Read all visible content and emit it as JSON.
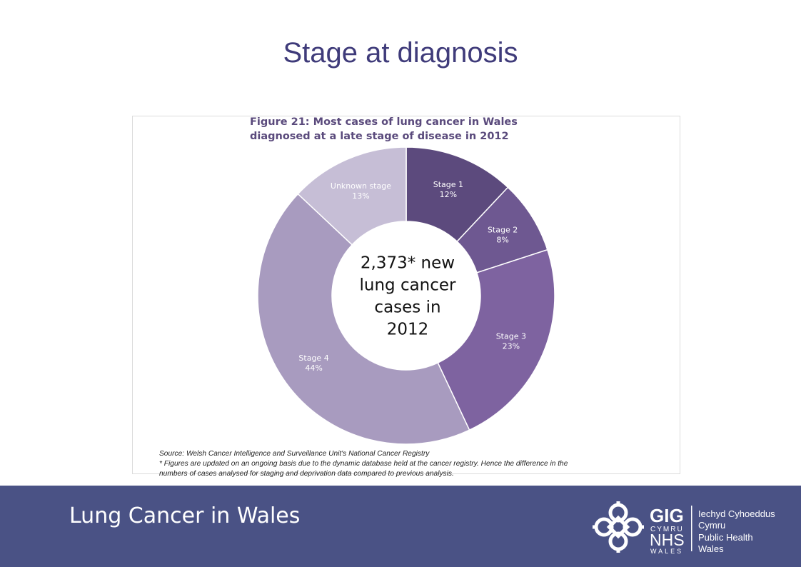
{
  "page": {
    "title": "Stage at diagnosis",
    "footer_title": "Lung Cancer in Wales"
  },
  "chart_data": {
    "type": "pie",
    "title_lines": [
      "Figure 21: Most cases of lung cancer in Wales",
      "diagnosed at a late stage of disease in 2012"
    ],
    "center_text": [
      "2,373* new",
      "lung cancer",
      "cases in",
      "2012"
    ],
    "slices": [
      {
        "label": "Stage 1",
        "value": 12,
        "value_label": "12%",
        "color": "#5c4a7d",
        "text_color": "#ffffff"
      },
      {
        "label": "Stage 2",
        "value": 8,
        "value_label": "8%",
        "color": "#6e5891",
        "text_color": "#ffffff"
      },
      {
        "label": "Stage 3",
        "value": 23,
        "value_label": "23%",
        "color": "#7e63a0",
        "text_color": "#ffffff"
      },
      {
        "label": "Stage 4",
        "value": 44,
        "value_label": "44%",
        "color": "#a89bbf",
        "text_color": "#ffffff"
      },
      {
        "label": "Unknown stage",
        "value": 13,
        "value_label": "13%",
        "color": "#c6bed6",
        "text_color": "#ffffff"
      }
    ]
  },
  "source": {
    "lines": [
      "Source: Welsh Cancer Intelligence and Surveillance Unit's National Cancer Registry",
      "* Figures are updated on an ongoing basis due to the dynamic database held at the cancer registry.  Hence the difference in the",
      "numbers of cases analysed for staging and deprivation data compared to previous analysis."
    ]
  },
  "logo": {
    "gig": "GIG",
    "cymru": "CYMRU",
    "nhs": "NHS",
    "wales": "WALES",
    "welsh_name_lines": [
      "Iechyd Cyhoeddus",
      "Cymru"
    ],
    "english_name_lines": [
      "Public Health",
      "Wales"
    ]
  },
  "colors": {
    "title": "#3f3b7a",
    "footer_bg": "#4a5285",
    "chart_title": "#5a4a7c"
  }
}
